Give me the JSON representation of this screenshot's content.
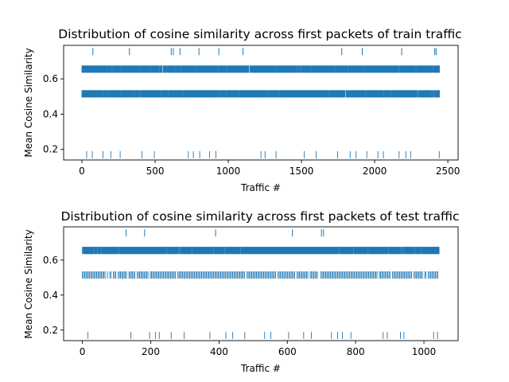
{
  "figure": {
    "marker_color": "#1f77b4"
  },
  "chart_data": [
    {
      "type": "scatter",
      "title": "Distribution of cosine similarity across first packets of train traffic",
      "xlabel": "Traffic #",
      "ylabel": "Mean Cosine Similarity",
      "xlim": [
        -125,
        2570
      ],
      "ylim": [
        0.14,
        0.79
      ],
      "xticks": [
        0,
        500,
        1000,
        1500,
        2000,
        2500
      ],
      "yticks": [
        0.2,
        0.4,
        0.6
      ],
      "grid": false,
      "marker": "|",
      "x_range": [
        0,
        2443
      ],
      "levels": [
        {
          "y": 0.655,
          "density": "dense"
        },
        {
          "y": 0.515,
          "density": "dense"
        },
        {
          "y": 0.17,
          "density": "sparse"
        }
      ],
      "outliers": [
        {
          "x": 75,
          "y": 0.755
        },
        {
          "x": 325,
          "y": 0.755
        },
        {
          "x": 610,
          "y": 0.755
        },
        {
          "x": 625,
          "y": 0.755
        },
        {
          "x": 670,
          "y": 0.755
        },
        {
          "x": 800,
          "y": 0.755
        },
        {
          "x": 935,
          "y": 0.755
        },
        {
          "x": 1100,
          "y": 0.755
        },
        {
          "x": 1775,
          "y": 0.755
        },
        {
          "x": 1915,
          "y": 0.755
        },
        {
          "x": 2185,
          "y": 0.755
        },
        {
          "x": 2410,
          "y": 0.755
        },
        {
          "x": 2420,
          "y": 0.755
        }
      ]
    },
    {
      "type": "scatter",
      "title": "Distribution of cosine similarity across first packets of test traffic",
      "xlabel": "Traffic #",
      "ylabel": "Mean Cosine Similarity",
      "xlim": [
        -55,
        1100
      ],
      "ylim": [
        0.14,
        0.79
      ],
      "xticks": [
        0,
        200,
        400,
        600,
        800,
        1000
      ],
      "yticks": [
        0.2,
        0.4,
        0.6
      ],
      "grid": false,
      "marker": "|",
      "x_range": [
        0,
        1045
      ],
      "levels": [
        {
          "y": 0.655,
          "density": "dense"
        },
        {
          "y": 0.515,
          "density": "medium"
        },
        {
          "y": 0.17,
          "density": "sparse"
        }
      ],
      "outliers": [
        {
          "x": 128,
          "y": 0.755
        },
        {
          "x": 182,
          "y": 0.755
        },
        {
          "x": 390,
          "y": 0.755
        },
        {
          "x": 615,
          "y": 0.755
        },
        {
          "x": 700,
          "y": 0.755
        },
        {
          "x": 706,
          "y": 0.755
        }
      ]
    }
  ]
}
